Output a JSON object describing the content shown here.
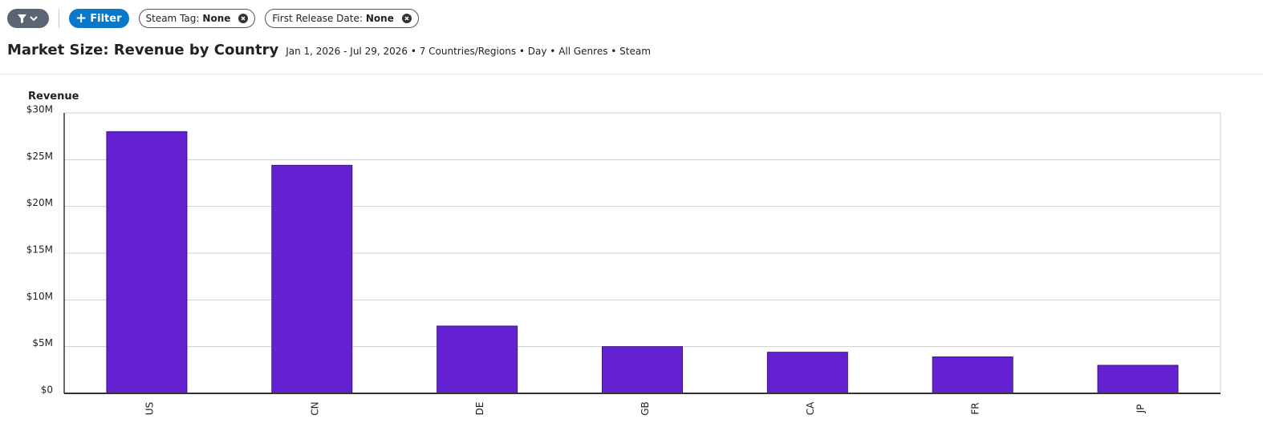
{
  "filters": {
    "add_button": "Filter",
    "chips": [
      {
        "label": "Steam Tag:",
        "value": "None"
      },
      {
        "label": "First Release Date:",
        "value": "None"
      }
    ]
  },
  "header": {
    "title": "Market Size: Revenue by Country",
    "subtitle": "Jan 1, 2026 - Jul 29, 2026 • 7 Countries/Regions • Day • All Genres • Steam"
  },
  "chart_data": {
    "type": "bar",
    "y_label": "Revenue",
    "categories": [
      "US",
      "CN",
      "DE",
      "GB",
      "CA",
      "FR",
      "JP"
    ],
    "values": [
      28000000,
      24400000,
      7200000,
      5000000,
      4400000,
      3900000,
      3000000
    ],
    "color": "#6321d2",
    "ylim": [
      0,
      30000000
    ],
    "yticks": [
      {
        "value": 0,
        "label": "$0"
      },
      {
        "value": 5000000,
        "label": "$5M"
      },
      {
        "value": 10000000,
        "label": "$10M"
      },
      {
        "value": 15000000,
        "label": "$15M"
      },
      {
        "value": 20000000,
        "label": "$20M"
      },
      {
        "value": 25000000,
        "label": "$25M"
      },
      {
        "value": 30000000,
        "label": "$30M"
      }
    ],
    "grid": true
  }
}
